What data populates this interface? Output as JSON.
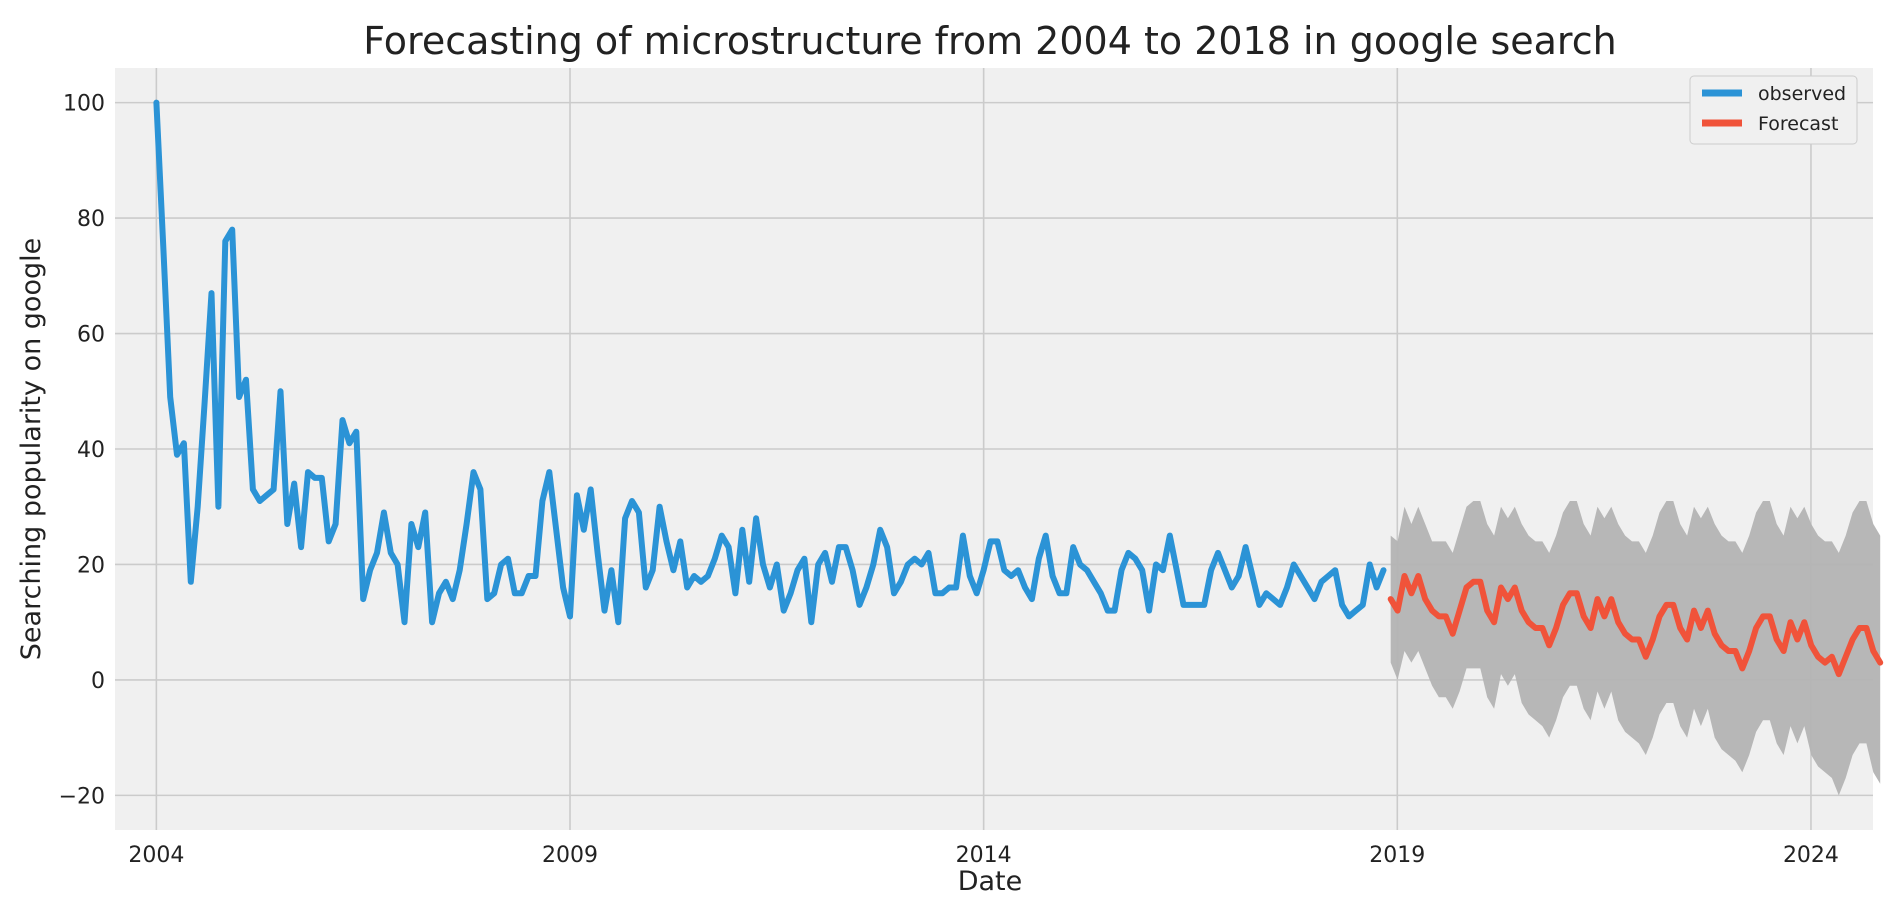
{
  "chart_data": {
    "type": "line",
    "title": "Forecasting of microstructure from 2004 to 2018 in google search",
    "xlabel": "Date",
    "ylabel": "Searching popularity on google",
    "xlim": [
      2003.5,
      2024.75
    ],
    "ylim": [
      -26,
      106
    ],
    "xticks": [
      2004,
      2009,
      2014,
      2019,
      2024
    ],
    "xtick_labels": [
      "2004",
      "2009",
      "2014",
      "2019",
      "2024"
    ],
    "yticks": [
      -20,
      0,
      20,
      40,
      60,
      80,
      100
    ],
    "ytick_labels": [
      "−20",
      "0",
      "20",
      "40",
      "60",
      "80",
      "100"
    ],
    "grid": true,
    "legend_position": "top-right",
    "series": [
      {
        "name": "observed",
        "color": "#2b93d6",
        "x_start": 2004.0,
        "step": 0.08333,
        "values": [
          100,
          75,
          49,
          39,
          41,
          17,
          30,
          48,
          67,
          30,
          76,
          78,
          49,
          52,
          33,
          31,
          32,
          33,
          50,
          27,
          34,
          23,
          36,
          35,
          35,
          24,
          27,
          45,
          41,
          43,
          14,
          19,
          22,
          29,
          22,
          20,
          10,
          27,
          23,
          29,
          10,
          15,
          17,
          14,
          19,
          27,
          36,
          33,
          14,
          15,
          20,
          21,
          15,
          15,
          18,
          18,
          31,
          36,
          26,
          16,
          11,
          32,
          26,
          33,
          22,
          12,
          19,
          10,
          28,
          31,
          29,
          16,
          19,
          30,
          24,
          19,
          24,
          16,
          18,
          17,
          18,
          21,
          25,
          23,
          15,
          26,
          17,
          28,
          20,
          16,
          20,
          12,
          15,
          19,
          21,
          10,
          20,
          22,
          17,
          23,
          23,
          19,
          13,
          16,
          20,
          26,
          23,
          15,
          17,
          20,
          21,
          20,
          22,
          15,
          15,
          16,
          16,
          25,
          18,
          15,
          19,
          24,
          24,
          19,
          18,
          19,
          16,
          14,
          21,
          25,
          18,
          15,
          15,
          23,
          20,
          19,
          17,
          15,
          12,
          12,
          19,
          22,
          21,
          19,
          12,
          20,
          19,
          25,
          19,
          13,
          13,
          13,
          13,
          19,
          22,
          19,
          16,
          18,
          23,
          18,
          13,
          15,
          14,
          13,
          16,
          20,
          18,
          16,
          14,
          17,
          18,
          19,
          13,
          11,
          12,
          13,
          20,
          16,
          19
        ]
      },
      {
        "name": "Forecast",
        "color": "#f0533a",
        "x_start": 2018.92,
        "step": 0.08333,
        "values": [
          14,
          12,
          18,
          15,
          18,
          14,
          12,
          11,
          11,
          8,
          12,
          16,
          17,
          17,
          12,
          10,
          16,
          14,
          16,
          12,
          10,
          9,
          9,
          6,
          9,
          13,
          15,
          15,
          11,
          9,
          14,
          11,
          14,
          10,
          8,
          7,
          7,
          4,
          7,
          11,
          13,
          13,
          9,
          7,
          12,
          9,
          12,
          8,
          6,
          5,
          5,
          2,
          5,
          9,
          11,
          11,
          7,
          5,
          10,
          7,
          10,
          6,
          4,
          3,
          4,
          1,
          4,
          7,
          9,
          9,
          5,
          3
        ]
      }
    ],
    "confidence_band": {
      "color": "#b3b3b3",
      "x_start": 2018.92,
      "step": 0.08333,
      "lower": [
        3,
        0,
        5,
        3,
        5,
        2,
        -1,
        -3,
        -3,
        -5,
        -2,
        2,
        2,
        2,
        -3,
        -5,
        1,
        -1,
        1,
        -4,
        -6,
        -7,
        -8,
        -10,
        -7,
        -3,
        -1,
        -1,
        -5,
        -7,
        -2,
        -5,
        -2,
        -7,
        -9,
        -10,
        -11,
        -13,
        -10,
        -6,
        -4,
        -4,
        -8,
        -10,
        -5,
        -8,
        -5,
        -10,
        -12,
        -13,
        -14,
        -16,
        -13,
        -9,
        -7,
        -7,
        -11,
        -13,
        -8,
        -11,
        -8,
        -13,
        -15,
        -16,
        -17,
        -20,
        -17,
        -13,
        -11,
        -11,
        -16,
        -18
      ],
      "upper": [
        25,
        24,
        30,
        27,
        30,
        27,
        24,
        24,
        24,
        22,
        26,
        30,
        31,
        31,
        27,
        25,
        30,
        28,
        30,
        27,
        25,
        24,
        24,
        22,
        25,
        29,
        31,
        31,
        27,
        25,
        30,
        28,
        30,
        27,
        25,
        24,
        24,
        22,
        25,
        29,
        31,
        31,
        27,
        25,
        30,
        28,
        30,
        27,
        25,
        24,
        24,
        22,
        25,
        29,
        31,
        31,
        27,
        25,
        30,
        28,
        30,
        27,
        25,
        24,
        24,
        22,
        25,
        29,
        31,
        31,
        27,
        25
      ]
    }
  }
}
